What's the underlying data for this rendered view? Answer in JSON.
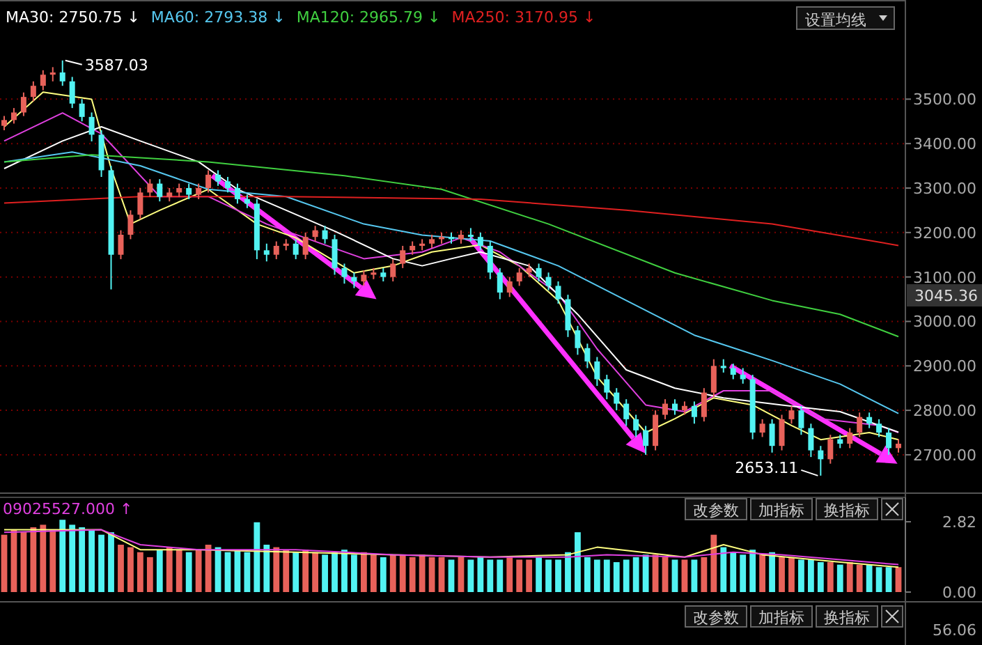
{
  "chart_data": [
    {
      "type": "candlestick",
      "legend": "top left",
      "grid": "y",
      "categories": [
        null,
        null,
        null,
        null,
        null,
        null,
        null,
        null,
        null,
        null,
        null,
        null,
        null,
        null,
        null,
        null,
        null,
        null,
        null,
        null,
        null,
        null,
        null,
        null,
        null,
        null,
        null,
        null,
        null,
        null,
        null,
        null,
        null,
        null,
        null,
        null,
        null,
        null,
        null,
        null,
        null,
        null,
        null,
        null,
        null,
        null,
        null,
        null,
        null,
        null,
        null,
        null,
        null,
        null,
        null,
        null,
        null,
        null,
        null,
        null,
        null,
        null,
        null,
        null,
        null,
        null,
        null,
        null,
        null,
        null,
        null,
        null,
        null,
        null,
        null,
        null,
        null,
        null,
        null,
        null,
        null,
        null,
        null,
        null,
        null,
        null,
        null,
        null,
        null,
        null,
        null,
        null,
        null
      ],
      "ylim": [
        2620,
        3723
      ],
      "yticks": [
        {
          "value": 2700,
          "label": "2700.00"
        },
        {
          "value": 2800,
          "label": "2800.00"
        },
        {
          "value": 2900,
          "label": "2900.00"
        },
        {
          "value": 3000,
          "label": "3000.00"
        },
        {
          "value": 3100,
          "label": "3100.00"
        },
        {
          "value": 3200,
          "label": "3200.00"
        },
        {
          "value": 3300,
          "label": "3300.00"
        },
        {
          "value": 3400,
          "label": "3400.00"
        },
        {
          "value": 3500,
          "label": "3500.00"
        }
      ],
      "ohlc": [
        [
          3440,
          3462,
          3430,
          3453
        ],
        [
          3453,
          3480,
          3445,
          3470
        ],
        [
          3470,
          3515,
          3462,
          3505
        ],
        [
          3505,
          3540,
          3495,
          3530
        ],
        [
          3530,
          3565,
          3520,
          3555
        ],
        [
          3555,
          3572,
          3540,
          3560
        ],
        [
          3560,
          3587.03,
          3530,
          3540
        ],
        [
          3540,
          3550,
          3480,
          3490
        ],
        [
          3490,
          3500,
          3450,
          3460
        ],
        [
          3460,
          3470,
          3405,
          3420
        ],
        [
          3420,
          3430,
          3325,
          3340
        ],
        [
          3340,
          3350,
          3072,
          3150
        ],
        [
          3150,
          3205,
          3140,
          3195
        ],
        [
          3195,
          3250,
          3185,
          3240
        ],
        [
          3240,
          3300,
          3230,
          3290
        ],
        [
          3290,
          3320,
          3280,
          3310
        ],
        [
          3310,
          3320,
          3270,
          3280
        ],
        [
          3280,
          3300,
          3270,
          3290
        ],
        [
          3290,
          3310,
          3280,
          3300
        ],
        [
          3300,
          3310,
          3275,
          3285
        ],
        [
          3285,
          3310,
          3275,
          3300
        ],
        [
          3300,
          3340,
          3290,
          3330
        ],
        [
          3330,
          3340,
          3305,
          3315
        ],
        [
          3315,
          3325,
          3290,
          3300
        ],
        [
          3300,
          3310,
          3265,
          3275
        ],
        [
          3275,
          3285,
          3255,
          3265
        ],
        [
          3265,
          3275,
          3140,
          3160
        ],
        [
          3160,
          3175,
          3135,
          3150
        ],
        [
          3150,
          3180,
          3140,
          3170
        ],
        [
          3170,
          3185,
          3160,
          3175
        ],
        [
          3175,
          3185,
          3140,
          3150
        ],
        [
          3150,
          3200,
          3140,
          3190
        ],
        [
          3190,
          3215,
          3180,
          3205
        ],
        [
          3205,
          3215,
          3175,
          3185
        ],
        [
          3185,
          3195,
          3105,
          3120
        ],
        [
          3120,
          3130,
          3085,
          3100
        ],
        [
          3100,
          3110,
          3075,
          3090
        ],
        [
          3090,
          3115,
          3080,
          3105
        ],
        [
          3105,
          3120,
          3095,
          3110
        ],
        [
          3110,
          3120,
          3090,
          3100
        ],
        [
          3100,
          3140,
          3090,
          3130
        ],
        [
          3130,
          3170,
          3120,
          3160
        ],
        [
          3160,
          3180,
          3150,
          3170
        ],
        [
          3170,
          3185,
          3160,
          3175
        ],
        [
          3175,
          3195,
          3165,
          3185
        ],
        [
          3185,
          3200,
          3175,
          3190
        ],
        [
          3190,
          3200,
          3175,
          3185
        ],
        [
          3185,
          3205,
          3175,
          3195
        ],
        [
          3195,
          3210,
          3180,
          3190
        ],
        [
          3190,
          3200,
          3160,
          3170
        ],
        [
          3170,
          3180,
          3095,
          3110
        ],
        [
          3110,
          3120,
          3050,
          3065
        ],
        [
          3065,
          3100,
          3055,
          3090
        ],
        [
          3090,
          3120,
          3080,
          3110
        ],
        [
          3110,
          3130,
          3100,
          3120
        ],
        [
          3120,
          3130,
          3090,
          3100
        ],
        [
          3100,
          3110,
          3070,
          3080
        ],
        [
          3080,
          3090,
          3040,
          3050
        ],
        [
          3050,
          3060,
          2965,
          2980
        ],
        [
          2980,
          2990,
          2925,
          2940
        ],
        [
          2940,
          2950,
          2895,
          2910
        ],
        [
          2910,
          2920,
          2855,
          2870
        ],
        [
          2870,
          2880,
          2825,
          2840
        ],
        [
          2840,
          2850,
          2800,
          2815
        ],
        [
          2815,
          2825,
          2765,
          2780
        ],
        [
          2780,
          2790,
          2740,
          2755
        ],
        [
          2755,
          2765,
          2700,
          2720
        ],
        [
          2720,
          2800,
          2710,
          2790
        ],
        [
          2790,
          2825,
          2780,
          2815
        ],
        [
          2815,
          2825,
          2790,
          2800
        ],
        [
          2800,
          2820,
          2790,
          2810
        ],
        [
          2810,
          2820,
          2770,
          2785
        ],
        [
          2785,
          2850,
          2775,
          2840
        ],
        [
          2840,
          2915,
          2830,
          2900
        ],
        [
          2900,
          2915,
          2885,
          2895
        ],
        [
          2895,
          2905,
          2870,
          2880
        ],
        [
          2880,
          2895,
          2860,
          2870
        ],
        [
          2870,
          2880,
          2735,
          2750
        ],
        [
          2750,
          2780,
          2740,
          2770
        ],
        [
          2770,
          2780,
          2705,
          2720
        ],
        [
          2720,
          2790,
          2710,
          2780
        ],
        [
          2780,
          2810,
          2770,
          2800
        ],
        [
          2800,
          2810,
          2745,
          2760
        ],
        [
          2760,
          2770,
          2695,
          2710
        ],
        [
          2710,
          2720,
          2653.11,
          2690
        ],
        [
          2690,
          2745,
          2680,
          2735
        ],
        [
          2735,
          2745,
          2715,
          2725
        ],
        [
          2725,
          2760,
          2715,
          2750
        ],
        [
          2750,
          2795,
          2740,
          2785
        ],
        [
          2785,
          2795,
          2760,
          2770
        ],
        [
          2770,
          2780,
          2740,
          2750
        ],
        [
          2750,
          2760,
          2700,
          2715
        ],
        [
          2715,
          2735,
          2705,
          2725
        ]
      ],
      "colors": [
        "#e8625a",
        "#e8625a",
        "#e8625a",
        "#e8625a",
        "#e8625a",
        "#e8625a",
        "#52f2f2",
        "#52f2f2",
        "#52f2f2",
        "#52f2f2",
        "#52f2f2",
        "#52f2f2",
        "#e8625a",
        "#e8625a",
        "#e8625a",
        "#e8625a",
        "#52f2f2",
        "#e8625a",
        "#e8625a",
        "#52f2f2",
        "#e8625a",
        "#e8625a",
        "#52f2f2",
        "#52f2f2",
        "#52f2f2",
        "#52f2f2",
        "#52f2f2",
        "#52f2f2",
        "#e8625a",
        "#e8625a",
        "#52f2f2",
        "#e8625a",
        "#e8625a",
        "#52f2f2",
        "#52f2f2",
        "#52f2f2",
        "#52f2f2",
        "#e8625a",
        "#e8625a",
        "#52f2f2",
        "#e8625a",
        "#e8625a",
        "#e8625a",
        "#e8625a",
        "#e8625a",
        "#e8625a",
        "#52f2f2",
        "#e8625a",
        "#52f2f2",
        "#52f2f2",
        "#52f2f2",
        "#52f2f2",
        "#e8625a",
        "#e8625a",
        "#e8625a",
        "#52f2f2",
        "#52f2f2",
        "#52f2f2",
        "#52f2f2",
        "#52f2f2",
        "#52f2f2",
        "#52f2f2",
        "#52f2f2",
        "#52f2f2",
        "#52f2f2",
        "#52f2f2",
        "#52f2f2",
        "#e8625a",
        "#e8625a",
        "#52f2f2",
        "#e8625a",
        "#52f2f2",
        "#e8625a",
        "#e8625a",
        "#52f2f2",
        "#52f2f2",
        "#52f2f2",
        "#52f2f2",
        "#e8625a",
        "#52f2f2",
        "#e8625a",
        "#e8625a",
        "#52f2f2",
        "#52f2f2",
        "#52f2f2",
        "#e8625a",
        "#52f2f2",
        "#e8625a",
        "#e8625a",
        "#52f2f2",
        "#52f2f2",
        "#52f2f2",
        "#e8625a"
      ],
      "series": [
        {
          "type": "line",
          "color": "#ffff80",
          "values": [
            3438,
            null,
            null,
            null,
            3516,
            null,
            null,
            null,
            null,
            3500,
            null,
            3344,
            null,
            3219,
            null,
            null,
            3250,
            null,
            null,
            null,
            null,
            3297,
            null,
            null,
            null,
            null,
            3219,
            null,
            null,
            null,
            3188,
            null,
            null,
            null,
            null,
            null,
            3109,
            null,
            null,
            null,
            3125,
            null,
            null,
            null,
            3156,
            null,
            null,
            null,
            null,
            3172,
            null,
            null,
            null,
            3125,
            null,
            null,
            null,
            3047,
            null,
            null,
            null,
            2875,
            null,
            null,
            null,
            null,
            2750,
            null,
            null,
            2781,
            null,
            null,
            null,
            2828,
            null,
            null,
            null,
            2812,
            null,
            null,
            null,
            2766,
            null,
            null,
            2734,
            null,
            null,
            null,
            null,
            2750,
            null,
            null,
            2734
          ]
        },
        {
          "type": "line",
          "color": "#e040e0",
          "values": [
            3406,
            null,
            null,
            null,
            null,
            null,
            3469,
            null,
            null,
            null,
            3422,
            null,
            null,
            null,
            null,
            null,
            3281,
            null,
            null,
            null,
            null,
            3281,
            null,
            null,
            null,
            null,
            null,
            3219,
            null,
            null,
            null,
            null,
            null,
            3172,
            null,
            null,
            null,
            3141,
            null,
            null,
            null,
            null,
            null,
            3156,
            null,
            null,
            null,
            3188,
            null,
            null,
            null,
            3156,
            null,
            null,
            null,
            null,
            null,
            3062,
            null,
            null,
            null,
            2938,
            null,
            null,
            null,
            null,
            2812,
            null,
            null,
            null,
            2797,
            null,
            null,
            null,
            2844,
            null,
            null,
            null,
            null,
            2844,
            null,
            null,
            null,
            null,
            2781,
            null,
            null,
            null,
            null,
            null,
            2766,
            null,
            2750
          ]
        },
        {
          "type": "line",
          "name": "MA30: 2750.75 ↓",
          "color": "#ffffff",
          "values": [
            3344,
            null,
            null,
            null,
            null,
            null,
            3406,
            null,
            null,
            null,
            3438,
            null,
            null,
            null,
            3406,
            null,
            null,
            null,
            null,
            null,
            3359,
            null,
            null,
            null,
            3297,
            null,
            null,
            null,
            null,
            3250,
            null,
            null,
            null,
            null,
            3203,
            null,
            null,
            null,
            null,
            null,
            3141,
            null,
            null,
            3125,
            null,
            null,
            3141,
            null,
            null,
            3156,
            null,
            null,
            null,
            null,
            3125,
            null,
            null,
            null,
            null,
            3016,
            null,
            null,
            null,
            null,
            2891,
            null,
            null,
            null,
            null,
            2850,
            null,
            null,
            null,
            null,
            2828,
            null,
            null,
            null,
            null,
            null,
            2812,
            null,
            null,
            null,
            null,
            null,
            2797,
            null,
            null,
            null,
            null,
            null,
            2751
          ]
        },
        {
          "type": "line",
          "name": "MA60: 2793.38 ↓",
          "color": "#56c8f0",
          "values": [
            3359,
            null,
            null,
            null,
            null,
            null,
            null,
            3381,
            null,
            null,
            null,
            null,
            null,
            null,
            3350,
            null,
            null,
            null,
            null,
            null,
            null,
            3297,
            null,
            null,
            null,
            null,
            null,
            null,
            null,
            3281,
            null,
            null,
            null,
            null,
            null,
            null,
            null,
            3219,
            null,
            null,
            null,
            null,
            null,
            3194,
            null,
            null,
            null,
            null,
            null,
            null,
            3181,
            null,
            null,
            null,
            null,
            null,
            null,
            3125,
            null,
            null,
            null,
            null,
            null,
            null,
            3047,
            null,
            null,
            null,
            null,
            null,
            null,
            2969,
            null,
            null,
            null,
            null,
            null,
            null,
            null,
            2912,
            null,
            null,
            null,
            null,
            null,
            null,
            2859,
            null,
            null,
            null,
            null,
            null,
            2793
          ]
        },
        {
          "type": "line",
          "name": "MA120: 2965.79 ↓",
          "color": "#40d040",
          "values": [
            3359,
            null,
            null,
            null,
            null,
            null,
            null,
            null,
            null,
            3375,
            null,
            null,
            null,
            null,
            null,
            null,
            null,
            null,
            null,
            null,
            null,
            3359,
            null,
            null,
            null,
            null,
            null,
            null,
            null,
            null,
            null,
            null,
            null,
            null,
            null,
            3328,
            null,
            null,
            null,
            null,
            null,
            null,
            null,
            null,
            null,
            3297,
            null,
            null,
            null,
            null,
            null,
            null,
            null,
            null,
            null,
            null,
            3219,
            null,
            null,
            null,
            null,
            null,
            null,
            null,
            null,
            null,
            null,
            null,
            null,
            3109,
            null,
            null,
            null,
            null,
            null,
            null,
            null,
            null,
            null,
            3047,
            null,
            null,
            null,
            null,
            null,
            null,
            3016,
            null,
            null,
            null,
            null,
            null,
            2966
          ]
        },
        {
          "type": "line",
          "name": "MA250: 3170.95 ↓",
          "color": "#e02020",
          "values": [
            3266,
            null,
            null,
            null,
            null,
            null,
            null,
            null,
            null,
            null,
            null,
            null,
            null,
            null,
            3281,
            null,
            null,
            null,
            null,
            null,
            null,
            null,
            null,
            null,
            null,
            null,
            null,
            null,
            null,
            3281,
            null,
            null,
            null,
            null,
            null,
            null,
            null,
            null,
            null,
            null,
            null,
            null,
            null,
            null,
            null,
            null,
            null,
            null,
            null,
            3275,
            null,
            null,
            null,
            null,
            null,
            null,
            null,
            null,
            null,
            null,
            null,
            null,
            null,
            null,
            3250,
            null,
            null,
            null,
            null,
            null,
            null,
            null,
            null,
            null,
            null,
            null,
            null,
            null,
            null,
            3219,
            null,
            null,
            null,
            null,
            null,
            null,
            null,
            null,
            null,
            null,
            null,
            null,
            3171
          ]
        }
      ],
      "annotations": [
        "设置均线",
        "3587.03",
        "2653.11",
        "3045.36"
      ]
    },
    {
      "type": "bar",
      "tick_labels": "y",
      "categories": [
        null,
        null,
        null,
        null,
        null,
        null,
        null,
        null,
        null,
        null,
        null,
        null,
        null,
        null,
        null,
        null,
        null,
        null,
        null,
        null,
        null,
        null,
        null,
        null,
        null,
        null,
        null,
        null,
        null,
        null,
        null,
        null,
        null,
        null,
        null,
        null,
        null,
        null,
        null,
        null,
        null,
        null,
        null,
        null,
        null,
        null,
        null,
        null,
        null,
        null,
        null,
        null,
        null,
        null,
        null,
        null,
        null,
        null,
        null,
        null,
        null,
        null,
        null,
        null,
        null,
        null,
        null,
        null,
        null,
        null,
        null,
        null,
        null,
        null,
        null,
        null,
        null,
        null,
        null,
        null,
        null,
        null,
        null,
        null,
        null,
        null,
        null,
        null,
        null,
        null,
        null,
        null,
        null
      ],
      "ylim": [
        0,
        3.8
      ],
      "yticks": [
        {
          "value": 0,
          "label": "0.00"
        },
        {
          "value": 2.82,
          "label": "2.82"
        }
      ],
      "values": [
        2.3,
        2.5,
        2.4,
        2.6,
        2.7,
        2.5,
        2.9,
        2.7,
        2.6,
        2.5,
        2.3,
        2.4,
        1.9,
        1.8,
        1.6,
        1.4,
        1.7,
        1.8,
        1.7,
        1.6,
        1.7,
        1.9,
        1.8,
        1.6,
        1.7,
        1.6,
        2.8,
        1.9,
        1.8,
        1.7,
        1.6,
        1.7,
        1.6,
        1.5,
        1.6,
        1.7,
        1.5,
        1.6,
        1.5,
        1.4,
        1.5,
        1.5,
        1.4,
        1.5,
        1.4,
        1.4,
        1.3,
        1.4,
        1.3,
        1.4,
        1.3,
        1.3,
        1.4,
        1.3,
        1.3,
        1.4,
        1.3,
        1.3,
        1.6,
        2.4,
        1.4,
        1.3,
        1.3,
        1.2,
        1.3,
        1.4,
        1.5,
        1.5,
        1.4,
        1.3,
        1.3,
        1.3,
        1.4,
        2.3,
        1.8,
        1.6,
        1.5,
        1.7,
        1.5,
        1.6,
        1.4,
        1.4,
        1.3,
        1.3,
        1.2,
        1.2,
        1.1,
        1.2,
        1.1,
        1.1,
        1.0,
        1.0,
        1.0
      ],
      "colors": [
        "#e8625a",
        "#e8625a",
        "#e8625a",
        "#e8625a",
        "#e8625a",
        "#e8625a",
        "#52f2f2",
        "#52f2f2",
        "#52f2f2",
        "#52f2f2",
        "#52f2f2",
        "#52f2f2",
        "#e8625a",
        "#e8625a",
        "#e8625a",
        "#e8625a",
        "#52f2f2",
        "#e8625a",
        "#e8625a",
        "#52f2f2",
        "#e8625a",
        "#e8625a",
        "#52f2f2",
        "#52f2f2",
        "#52f2f2",
        "#52f2f2",
        "#52f2f2",
        "#52f2f2",
        "#e8625a",
        "#e8625a",
        "#52f2f2",
        "#e8625a",
        "#e8625a",
        "#52f2f2",
        "#52f2f2",
        "#52f2f2",
        "#52f2f2",
        "#e8625a",
        "#e8625a",
        "#52f2f2",
        "#e8625a",
        "#e8625a",
        "#e8625a",
        "#e8625a",
        "#e8625a",
        "#e8625a",
        "#52f2f2",
        "#e8625a",
        "#52f2f2",
        "#52f2f2",
        "#52f2f2",
        "#52f2f2",
        "#e8625a",
        "#e8625a",
        "#e8625a",
        "#52f2f2",
        "#52f2f2",
        "#52f2f2",
        "#52f2f2",
        "#52f2f2",
        "#52f2f2",
        "#52f2f2",
        "#52f2f2",
        "#52f2f2",
        "#52f2f2",
        "#52f2f2",
        "#52f2f2",
        "#e8625a",
        "#e8625a",
        "#52f2f2",
        "#e8625a",
        "#52f2f2",
        "#e8625a",
        "#e8625a",
        "#52f2f2",
        "#52f2f2",
        "#52f2f2",
        "#52f2f2",
        "#e8625a",
        "#52f2f2",
        "#e8625a",
        "#e8625a",
        "#52f2f2",
        "#52f2f2",
        "#52f2f2",
        "#e8625a",
        "#52f2f2",
        "#e8625a",
        "#e8625a",
        "#52f2f2",
        "#52f2f2",
        "#52f2f2",
        "#e8625a"
      ],
      "series": [
        {
          "type": "line",
          "color": "#ffff80",
          "values": [
            2.5,
            null,
            null,
            null,
            null,
            null,
            null,
            null,
            null,
            null,
            2.5,
            null,
            null,
            null,
            1.7,
            null,
            null,
            null,
            null,
            null,
            1.7,
            null,
            null,
            null,
            null,
            null,
            null,
            null,
            null,
            null,
            1.6,
            null,
            null,
            null,
            null,
            null,
            null,
            null,
            null,
            null,
            1.5,
            null,
            null,
            null,
            null,
            null,
            null,
            null,
            null,
            null,
            1.4,
            null,
            null,
            null,
            null,
            null,
            null,
            null,
            1.5,
            null,
            null,
            1.8,
            null,
            null,
            null,
            null,
            null,
            null,
            null,
            null,
            1.4,
            null,
            null,
            null,
            1.9,
            null,
            null,
            null,
            1.5,
            null,
            null,
            null,
            null,
            null,
            null,
            null,
            1.2,
            null,
            null,
            null,
            null,
            null,
            1.0
          ]
        },
        {
          "type": "line",
          "color": "#e040e0",
          "values": [
            2.4,
            null,
            null,
            null,
            null,
            null,
            null,
            null,
            null,
            null,
            2.5,
            null,
            null,
            null,
            1.9,
            null,
            null,
            null,
            null,
            null,
            1.7,
            null,
            null,
            null,
            null,
            null,
            null,
            null,
            null,
            null,
            1.7,
            null,
            null,
            null,
            null,
            null,
            null,
            null,
            null,
            null,
            1.5,
            null,
            null,
            null,
            null,
            null,
            null,
            null,
            null,
            null,
            1.4,
            null,
            null,
            null,
            null,
            null,
            null,
            null,
            1.4,
            null,
            null,
            null,
            1.5,
            null,
            null,
            null,
            null,
            null,
            null,
            null,
            1.4,
            null,
            null,
            null,
            null,
            1.6,
            null,
            null,
            null,
            null,
            1.5,
            null,
            null,
            null,
            null,
            null,
            1.3,
            null,
            null,
            null,
            null,
            null,
            1.1
          ]
        }
      ],
      "annotations": [
        "09025527.000 ↑",
        "改参数",
        "加指标",
        "换指标"
      ]
    },
    {
      "type": "other",
      "annotations": [
        "改参数",
        "加指标",
        "换指标",
        "56.06"
      ]
    }
  ]
}
